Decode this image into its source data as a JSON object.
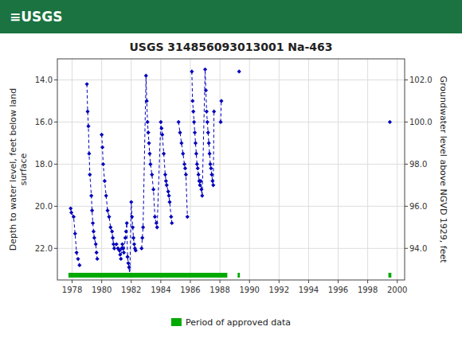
{
  "chart_data": {
    "type": "line",
    "header": {
      "text": "≡USGS",
      "color": "#1a7340"
    },
    "title": "USGS 314856093013001 Na-463",
    "ylabel": "Depth to water level, feet below land\nsurface",
    "y2label": "Groundwater level above NGVD 1929, feet",
    "xlim": [
      1977.0,
      2000.5
    ],
    "xticks": [
      1978,
      1980,
      1982,
      1984,
      1986,
      1988,
      1990,
      1992,
      1994,
      1996,
      1998,
      2000
    ],
    "ylim": [
      23.5,
      13.0
    ],
    "yticks": [
      {
        "value": 14.0,
        "label": "14.0"
      },
      {
        "value": 16.0,
        "label": "16.0"
      },
      {
        "value": 18.0,
        "label": "18.0"
      },
      {
        "value": 20.0,
        "label": "20.0"
      },
      {
        "value": 22.0,
        "label": "22.0"
      }
    ],
    "y2lim": [
      92.5,
      103.0
    ],
    "y2ticks": [
      {
        "value": 102.0,
        "label": "102.0"
      },
      {
        "value": 100.0,
        "label": "100.0"
      },
      {
        "value": 98.0,
        "label": "98.0"
      },
      {
        "value": 96.0,
        "label": "96.0"
      },
      {
        "value": 94.0,
        "label": "94.0"
      }
    ],
    "grid": true,
    "legend": "bottom",
    "series": [
      {
        "color": "#0000bb",
        "marker": "diamond",
        "line_style": "dashed",
        "x": [
          1977.9,
          1977.95,
          1978.1,
          1978.2,
          1978.3,
          1978.4,
          1978.5,
          null,
          1979.0,
          1979.05,
          1979.1,
          1979.15,
          1979.2,
          1979.3,
          1979.35,
          1979.4,
          1979.45,
          1979.5,
          1979.6,
          1979.65,
          1979.7,
          null,
          1980.0,
          1980.05,
          1980.1,
          1980.2,
          1980.3,
          1980.4,
          1980.5,
          1980.6,
          1980.7,
          1980.75,
          1980.8,
          1980.85,
          1981.0,
          1981.1,
          1981.2,
          1981.25,
          1981.3,
          1981.35,
          1981.4,
          1981.45,
          1981.5,
          1981.6,
          1981.65,
          1981.7,
          1981.75,
          1981.8,
          1981.85,
          1981.9,
          1982.0,
          1982.05,
          1982.1,
          1982.15,
          1982.2,
          1982.25,
          1982.3,
          null,
          1982.7,
          1982.75,
          1982.8,
          1983.0,
          1983.05,
          1983.1,
          1983.15,
          1983.2,
          1983.25,
          1983.3,
          1983.4,
          1983.5,
          1983.6,
          1983.7,
          1983.75,
          1984.0,
          1984.05,
          1984.1,
          1984.2,
          1984.3,
          1984.35,
          1984.4,
          1984.5,
          1984.55,
          1984.6,
          1984.7,
          1984.75,
          null,
          1985.2,
          1985.3,
          1985.4,
          1985.5,
          1985.6,
          1985.65,
          1985.7,
          1985.8,
          null,
          1986.1,
          1986.15,
          1986.2,
          1986.25,
          1986.3,
          1986.35,
          1986.4,
          1986.45,
          1986.5,
          1986.55,
          1986.6,
          1986.65,
          1986.7,
          1986.75,
          1986.8,
          1987.0,
          1987.05,
          1987.1,
          1987.15,
          1987.2,
          1987.25,
          1987.3,
          1987.35,
          1987.4,
          1987.45,
          1987.5,
          1987.55,
          1987.6,
          null,
          1988.05,
          1988.1,
          null,
          1989.3,
          null,
          1999.5
        ],
        "values": [
          20.1,
          20.3,
          20.5,
          21.3,
          22.2,
          22.5,
          22.8,
          null,
          14.2,
          15.5,
          16.2,
          17.5,
          18.5,
          19.5,
          20.2,
          20.8,
          21.2,
          21.5,
          21.8,
          22.2,
          22.5,
          null,
          16.6,
          17.2,
          18.0,
          18.8,
          19.5,
          20.2,
          20.5,
          21.0,
          21.2,
          21.5,
          21.8,
          22.0,
          21.8,
          22.0,
          22.1,
          22.3,
          22.5,
          22.0,
          21.8,
          22.0,
          22.2,
          21.5,
          21.2,
          20.8,
          22.4,
          22.7,
          22.9,
          23.3,
          19.8,
          20.5,
          21.0,
          21.5,
          21.8,
          22.0,
          22.1,
          null,
          22.0,
          21.5,
          21.0,
          13.8,
          15.0,
          16.0,
          16.5,
          17.0,
          17.5,
          18.0,
          18.5,
          19.2,
          20.5,
          20.8,
          21.0,
          16.0,
          16.3,
          16.6,
          17.5,
          18.5,
          18.8,
          19.0,
          19.3,
          19.5,
          19.8,
          20.5,
          20.8,
          null,
          16.0,
          16.5,
          17.0,
          17.5,
          18.0,
          18.2,
          18.5,
          20.5,
          null,
          13.6,
          15.0,
          15.5,
          16.0,
          16.5,
          17.0,
          17.5,
          18.0,
          18.2,
          18.5,
          18.8,
          19.0,
          18.8,
          19.2,
          19.5,
          13.5,
          14.5,
          15.5,
          16.0,
          16.5,
          17.0,
          17.5,
          18.0,
          18.2,
          18.5,
          18.8,
          19.0,
          15.5,
          null,
          16.0,
          15.0,
          null,
          13.6,
          null,
          16.0
        ]
      },
      {
        "name": "Period of approved data",
        "type": "span",
        "color": "#00aa00",
        "start": [
          1977.75,
          1989.2,
          1999.4
        ],
        "end": [
          1988.5,
          1989.35,
          1999.6
        ]
      }
    ]
  }
}
